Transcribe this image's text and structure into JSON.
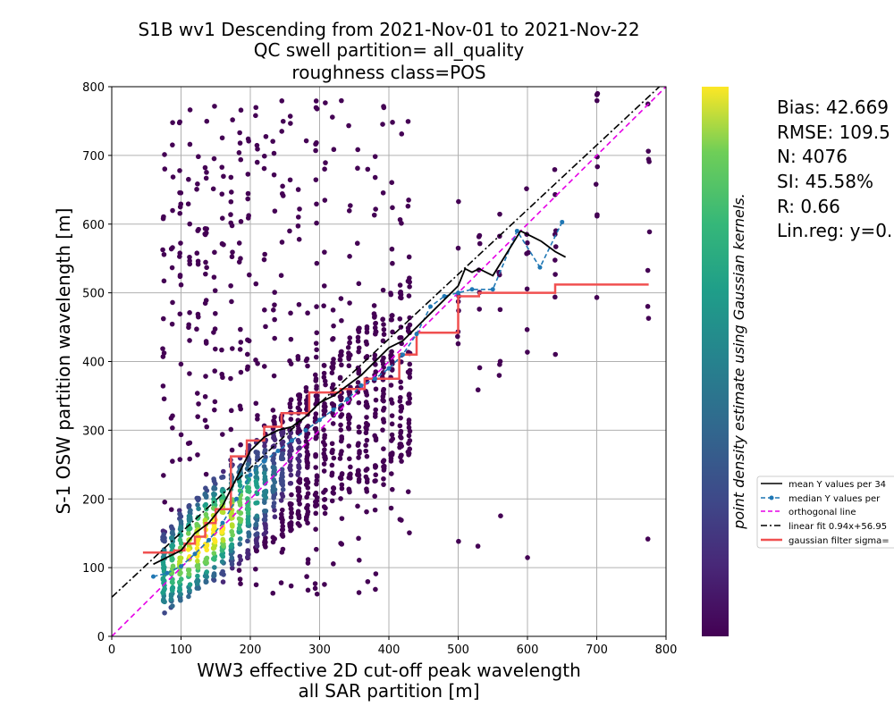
{
  "chart_data": {
    "type": "scatter",
    "title_lines": [
      "S1B wv1 Descending from 2021-Nov-01 to 2021-Nov-22",
      "QC swell partition= all_quality",
      "roughness class=POS"
    ],
    "xlabel_lines": [
      "WW3 effective 2D cut-off peak wavelength",
      "all SAR partition [m]"
    ],
    "ylabel": "S-1 OSW partition wavelength [m]",
    "xlim": [
      0,
      800
    ],
    "ylim": [
      0,
      800
    ],
    "xticks": [
      "0",
      "100",
      "200",
      "300",
      "400",
      "500",
      "600",
      "700",
      "800"
    ],
    "yticks": [
      "0",
      "100",
      "200",
      "300",
      "400",
      "500",
      "600",
      "700",
      "800"
    ],
    "grid": true,
    "colorbar_label": "point density estimate using Gaussian kernels.",
    "stats_lines": [
      "Bias: 42.669",
      "RMSE: 109.5",
      "N: 4076",
      "SI: 45.58%",
      "R: 0.66",
      "Lin.reg: y=0."
    ],
    "legend_position": "right",
    "colors": {
      "mean": "#000000",
      "median": "#1f77b4",
      "orthogonal": "#e600e6",
      "linfit": "#000000",
      "gaussian": "#f05050"
    },
    "series": [
      {
        "name": "mean Y values per 34",
        "style": "solid",
        "x": [
          60,
          80,
          100,
          120,
          140,
          160,
          180,
          200,
          220,
          240,
          260,
          280,
          300,
          320,
          340,
          360,
          380,
          400,
          420,
          440,
          460,
          480,
          500,
          510,
          520,
          530,
          550,
          590,
          610,
          620,
          640,
          655
        ],
        "y": [
          105,
          115,
          125,
          150,
          165,
          190,
          230,
          270,
          290,
          300,
          305,
          320,
          340,
          350,
          365,
          380,
          400,
          420,
          430,
          450,
          470,
          490,
          510,
          535,
          530,
          535,
          525,
          590,
          580,
          575,
          560,
          552
        ]
      },
      {
        "name": "median Y values per",
        "style": "dashed-marker",
        "x": [
          60,
          80,
          100,
          120,
          140,
          160,
          180,
          200,
          220,
          240,
          260,
          280,
          300,
          320,
          340,
          360,
          380,
          400,
          420,
          440,
          460,
          480,
          500,
          520,
          550,
          585,
          618,
          650
        ],
        "y": [
          87,
          92,
          102,
          120,
          140,
          165,
          200,
          235,
          255,
          270,
          285,
          300,
          315,
          330,
          345,
          365,
          375,
          390,
          410,
          440,
          480,
          495,
          500,
          505,
          505,
          590,
          537,
          603
        ]
      },
      {
        "name": "orthogonal line",
        "style": "dashed",
        "x": [
          0,
          800
        ],
        "y": [
          0,
          800
        ]
      },
      {
        "name": "linear fit 0.94x+56.95",
        "style": "dashdot",
        "x": [
          0,
          800
        ],
        "y": [
          56.95,
          808.95
        ]
      },
      {
        "name": "gaussian filter sigma=",
        "style": "step",
        "x": [
          45,
          90,
          105,
          120,
          135,
          150,
          172,
          195,
          220,
          245,
          285,
          330,
          365,
          415,
          440,
          500,
          530,
          640,
          775
        ],
        "y": [
          122,
          125,
          135,
          145,
          165,
          185,
          262,
          285,
          305,
          325,
          355,
          360,
          375,
          410,
          442,
          495,
          500,
          512,
          512
        ]
      }
    ]
  }
}
